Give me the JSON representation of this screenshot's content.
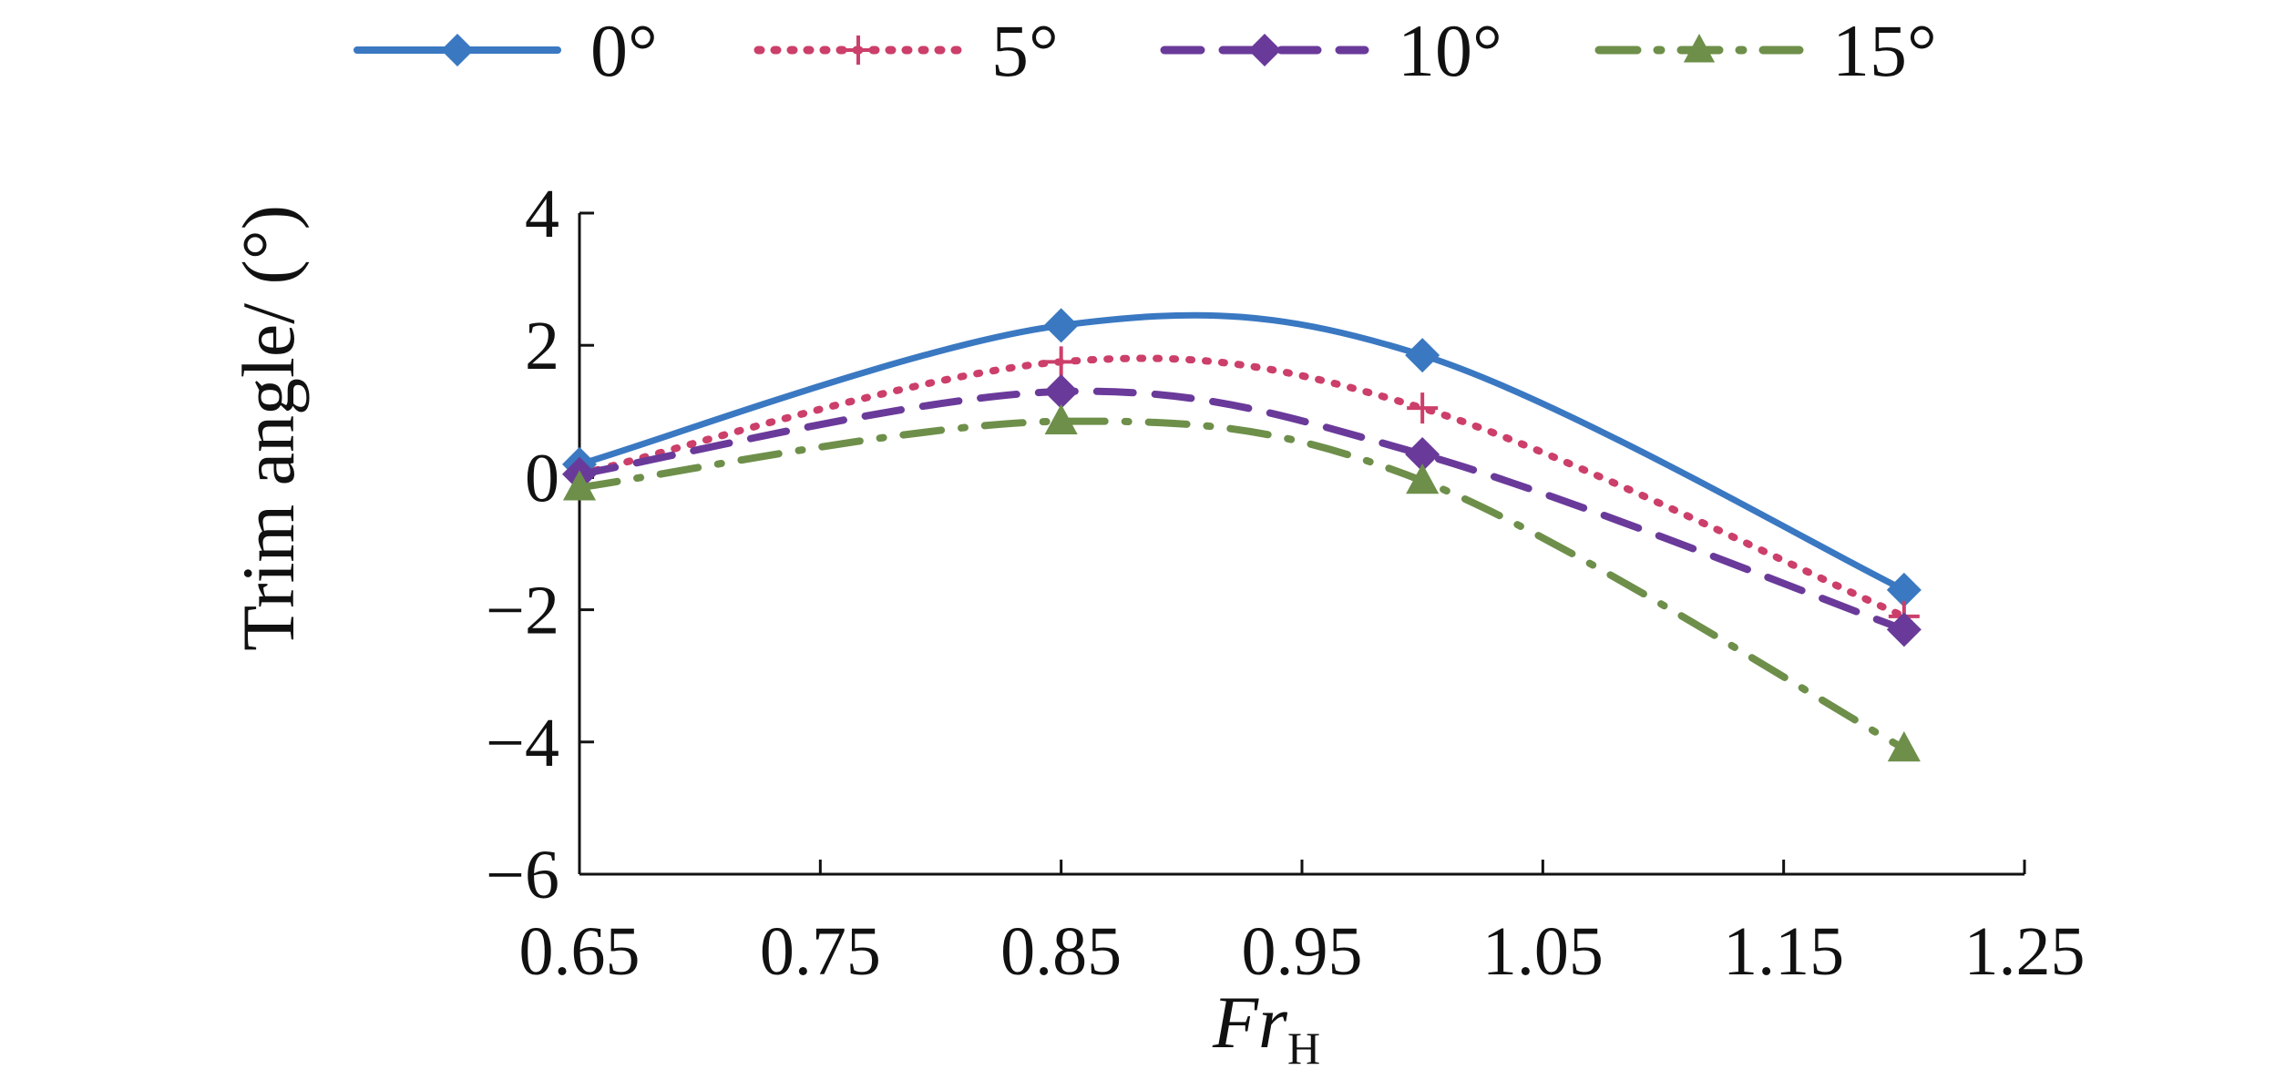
{
  "chart_data": {
    "type": "line",
    "title": "",
    "xlabel_main": "Fr",
    "xlabel_sub": "H",
    "ylabel": "Trim angle/ (°)",
    "xlim": [
      0.65,
      1.25
    ],
    "ylim": [
      -6,
      4
    ],
    "xticks": [
      "0.65",
      "0.75",
      "0.85",
      "0.95",
      "1.05",
      "1.15",
      "1.25"
    ],
    "yticks": [
      "4",
      "2",
      "0",
      "−2",
      "−4",
      "−6"
    ],
    "xtick_values": [
      0.65,
      0.75,
      0.85,
      0.95,
      1.05,
      1.15,
      1.25
    ],
    "ytick_values": [
      4,
      2,
      0,
      -2,
      -4,
      -6
    ],
    "grid": false,
    "legend_position": "top",
    "x": [
      0.65,
      0.85,
      1.0,
      1.2
    ],
    "series": [
      {
        "name": "0°",
        "values": [
          0.2,
          2.3,
          1.85,
          -1.7
        ],
        "color": "#3a78c2",
        "dash": "solid",
        "marker": "diamond"
      },
      {
        "name": "5°",
        "values": [
          0.05,
          1.75,
          1.05,
          -2.1
        ],
        "color": "#cc3f6a",
        "dash": "dot",
        "marker": "plus"
      },
      {
        "name": "10°",
        "values": [
          0.05,
          1.3,
          0.35,
          -2.3
        ],
        "color": "#6a3a9a",
        "dash": "dash",
        "marker": "diamond"
      },
      {
        "name": "15°",
        "values": [
          -0.15,
          0.85,
          -0.05,
          -4.1
        ],
        "color": "#6e8f4a",
        "dash": "dashdot",
        "marker": "triangle"
      }
    ]
  }
}
